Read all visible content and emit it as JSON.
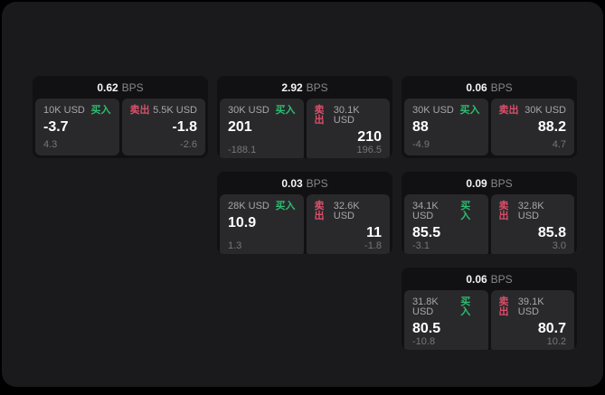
{
  "labels": {
    "buy": "买入",
    "sell": "卖出",
    "bps_unit": "BPS"
  },
  "colors": {
    "background": "#000000",
    "surface": "#1a1a1c",
    "card": "#111113",
    "panel": "#29292b",
    "buy_accent": "#2ebd70",
    "sell_accent": "#d9506a"
  },
  "cards": [
    {
      "bps": "0.62",
      "buy": {
        "amount": "10K USD",
        "value": "-3.7",
        "sub": "4.3"
      },
      "sell": {
        "amount": "5.5K USD",
        "value": "-1.8",
        "sub": "-2.6"
      }
    },
    {
      "bps": "2.92",
      "buy": {
        "amount": "30K USD",
        "value": "201",
        "sub": "-188.1"
      },
      "sell": {
        "amount": "30.1K USD",
        "value": "210",
        "sub": "196.5"
      }
    },
    {
      "bps": "0.06",
      "buy": {
        "amount": "30K USD",
        "value": "88",
        "sub": "-4.9"
      },
      "sell": {
        "amount": "30K USD",
        "value": "88.2",
        "sub": "4.7"
      }
    },
    {
      "bps": "0.03",
      "buy": {
        "amount": "28K USD",
        "value": "10.9",
        "sub": "1.3"
      },
      "sell": {
        "amount": "32.6K USD",
        "value": "11",
        "sub": "-1.8"
      }
    },
    {
      "bps": "0.09",
      "buy": {
        "amount": "34.1K USD",
        "value": "85.5",
        "sub": "-3.1"
      },
      "sell": {
        "amount": "32.8K USD",
        "value": "85.8",
        "sub": "3.0"
      }
    },
    {
      "bps": "0.06",
      "buy": {
        "amount": "31.8K USD",
        "value": "80.5",
        "sub": "-10.8"
      },
      "sell": {
        "amount": "39.1K USD",
        "value": "80.7",
        "sub": "10.2"
      }
    }
  ]
}
